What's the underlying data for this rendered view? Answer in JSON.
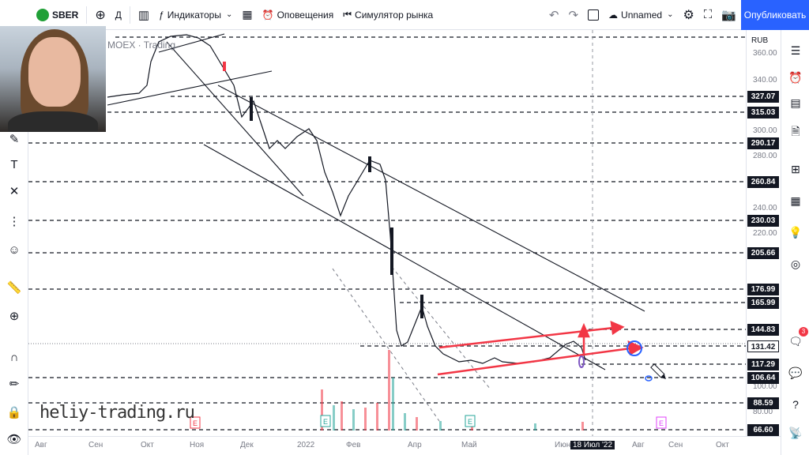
{
  "toolbar": {
    "symbol": "SBER",
    "interval": "Д",
    "indicators": "Индикаторы",
    "alerts": "Оповещения",
    "simulator": "Симулятор рынка",
    "layout_name": "Unnamed",
    "publish": "Опубликовать"
  },
  "chart_header": {
    "exchange_text": "MOEX · Trading"
  },
  "currency": "RUB",
  "watermark": "heliy-trading.ru",
  "price_scale": {
    "plain_labels": [
      "360.00",
      "340.00",
      "300.00",
      "280.00",
      "240.00",
      "220.00",
      "100.00",
      "80.00"
    ],
    "level_labels": [
      "327.07",
      "315.03",
      "290.17",
      "260.84",
      "230.03",
      "205.66",
      "176.99",
      "165.99",
      "144.83",
      "131.42",
      "117.29",
      "106.64",
      "88.59",
      "66.60"
    ]
  },
  "time_scale": {
    "labels": [
      "Авг",
      "Сен",
      "Окт",
      "Ноя",
      "Дек",
      "2022",
      "Фев",
      "Апр",
      "Май",
      "Июн",
      "18 Июл '22",
      "Авг",
      "Сен",
      "Окт"
    ],
    "crosshair_label": "18 Июл '22"
  },
  "right_panel": {
    "notification_count": "3"
  },
  "colors": {
    "accent": "#2962ff",
    "trend_red": "#f23645",
    "grid_dash": "#131722",
    "sber_green": "#21a038"
  }
}
